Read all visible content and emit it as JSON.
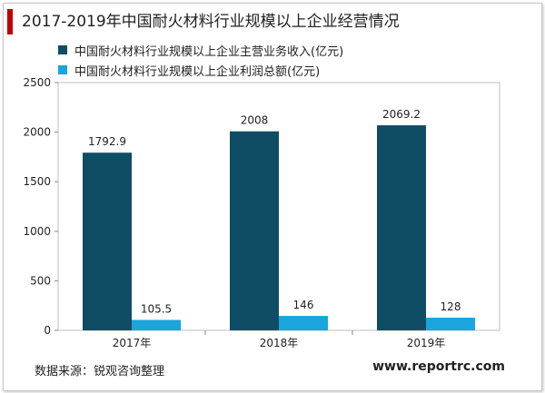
{
  "title": "2017-2019年中国耐火材料行业规模以上企业经营情况",
  "source": "数据来源：锐观咨询整理",
  "website": "www.reportrc.com",
  "colors": {
    "series1": "#0e4d64",
    "series2": "#1aa5dc",
    "accent": "#c00000"
  },
  "chart_data": {
    "type": "bar",
    "categories": [
      "2017年",
      "2018年",
      "2019年"
    ],
    "series": [
      {
        "name": "中国耐火材料行业规模以上企业主营业务收入(亿元)",
        "values": [
          1792.9,
          2008,
          2069.2
        ],
        "labels": [
          "1792.9",
          "2008",
          "2069.2"
        ]
      },
      {
        "name": "中国耐火材料行业规模以上企业利润总额(亿元)",
        "values": [
          105.5,
          146,
          128
        ],
        "labels": [
          "105.5",
          "146",
          "128"
        ]
      }
    ],
    "ylim": [
      0,
      2500
    ],
    "yticks": [
      0,
      500,
      1000,
      1500,
      2000,
      2500
    ],
    "grid": false,
    "legend": "top-left"
  }
}
